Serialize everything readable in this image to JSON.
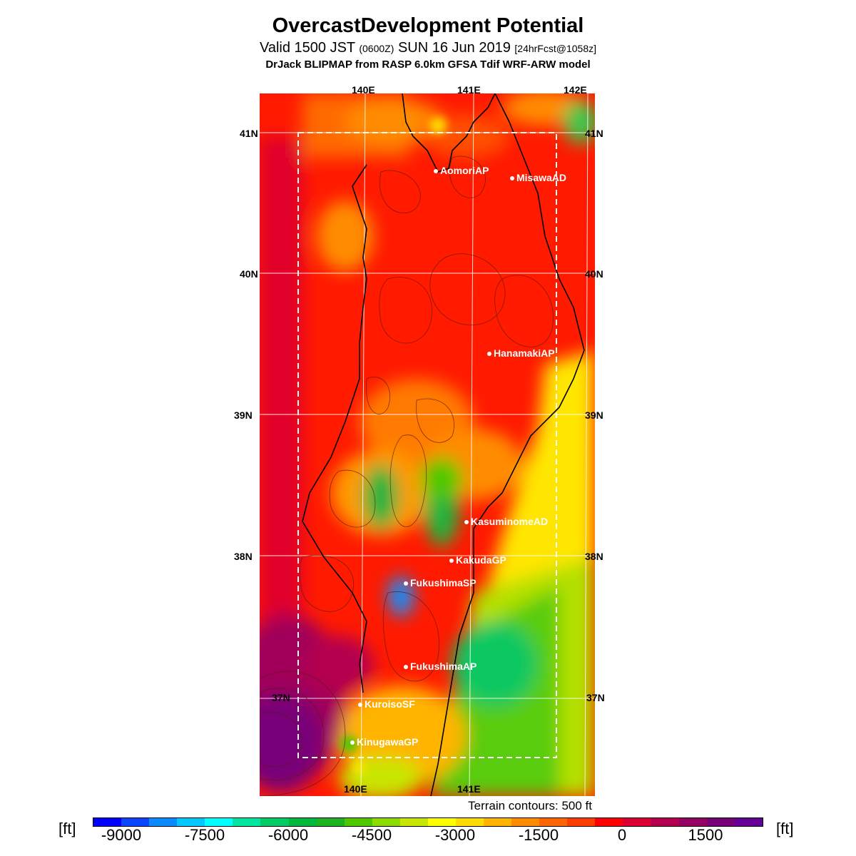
{
  "header": {
    "title": "OvercastDevelopment Potential",
    "valid_prefix": "Valid 1500 JST",
    "valid_utc": "(0600Z)",
    "valid_date": "SUN 16 Jun 2019",
    "forecast": "[24hrFcst@1058z]",
    "model": "DrJack BLIPMAP from RASP 6.0km GFSA Tdif WRF-ARW model"
  },
  "map": {
    "lon_labels": [
      "140E",
      "141E",
      "142E"
    ],
    "lat_labels": [
      "41N",
      "40N",
      "39N",
      "38N",
      "37N"
    ],
    "sites": [
      "AomoriAP",
      "MisawaAD",
      "HanamakiAP",
      "KasuminomeAD",
      "KakudaGP",
      "FukushimaSP",
      "FukushimaAP",
      "KuroisoSF",
      "KinugawaGP"
    ],
    "terrain_note": "Terrain contours: 500 ft"
  },
  "colorbar": {
    "unit_left": "[ft]",
    "unit_right": "[ft]",
    "ticks": [
      "-9000",
      "-7500",
      "-6000",
      "-4500",
      "-3000",
      "-1500",
      "0",
      "1500"
    ],
    "colors": [
      "#0000ff",
      "#0a46ff",
      "#0a8cff",
      "#00c8ff",
      "#00ffff",
      "#00e6a0",
      "#00cc66",
      "#00b83c",
      "#1eb41e",
      "#50c800",
      "#8cdc00",
      "#c8e600",
      "#ffff00",
      "#ffdc00",
      "#ffb400",
      "#ff8c00",
      "#ff6400",
      "#ff3c00",
      "#ff0000",
      "#dc0032",
      "#b40050",
      "#960064",
      "#780078",
      "#640096"
    ]
  }
}
